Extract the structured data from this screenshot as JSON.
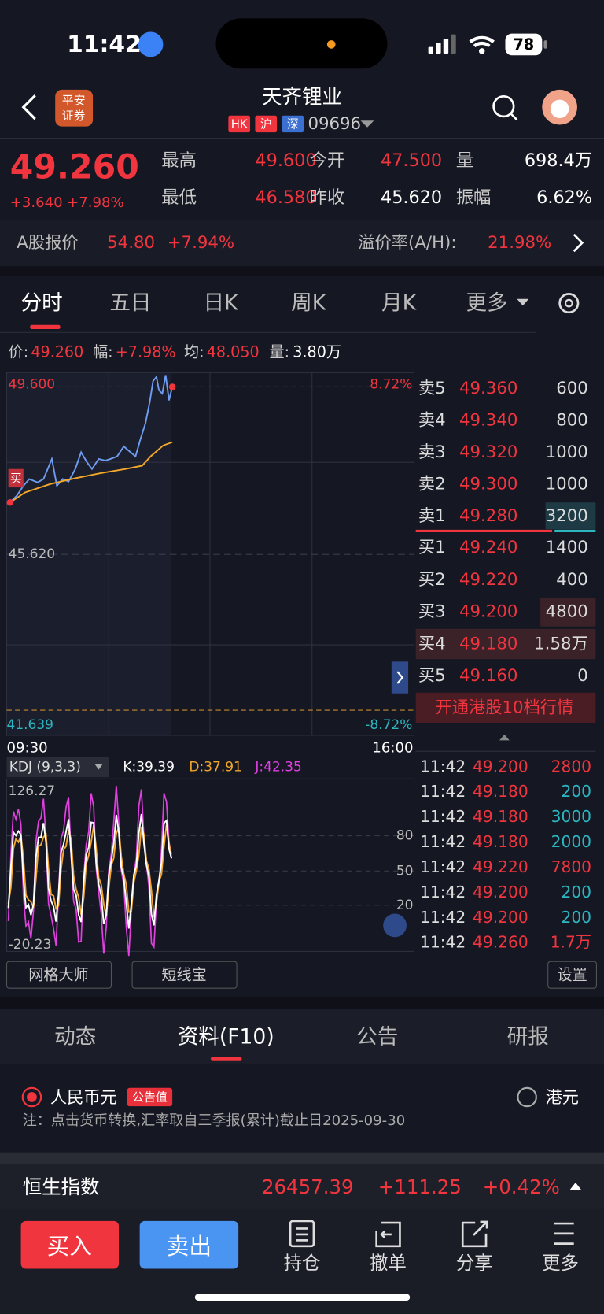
{
  "status_bar": {
    "time": "11:42",
    "battery": "78"
  },
  "header": {
    "broker_logo": [
      "平安",
      "证券"
    ],
    "title": "天齐锂业",
    "tags": [
      "HK",
      "沪",
      "深"
    ],
    "code": "09696"
  },
  "quote": {
    "price": "49.260",
    "change": "+3.640",
    "change_pct": "+7.98%",
    "stats": [
      {
        "label": "最高",
        "value": "49.600",
        "color": "#f0353f"
      },
      {
        "label": "今开",
        "value": "47.500",
        "color": "#f0353f"
      },
      {
        "label": "量",
        "value": "698.4万",
        "color": "#ffffff"
      },
      {
        "label": "最低",
        "value": "46.580",
        "color": "#f0353f"
      },
      {
        "label": "昨收",
        "value": "45.620",
        "color": "#ffffff"
      },
      {
        "label": "振幅",
        "value": "6.62%",
        "color": "#ffffff"
      }
    ]
  },
  "a_share": {
    "label": "A股报价",
    "price": "54.80",
    "change_pct": "+7.94%",
    "premium_label": "溢价率(A/H):",
    "premium": "21.98%"
  },
  "tabs": [
    "分时",
    "五日",
    "日K",
    "周K",
    "月K",
    "更多"
  ],
  "info": [
    {
      "label": "价:",
      "value": "49.260",
      "color": "#f0353f"
    },
    {
      "label": "幅:",
      "value": "+7.98%",
      "color": "#f0353f"
    },
    {
      "label": "均:",
      "value": "48.050",
      "color": "#f0353f"
    },
    {
      "label": "量:",
      "value": "3.80万",
      "color": "#ffffff"
    }
  ],
  "chart": {
    "high": "49.600",
    "high_pct": "8.72%",
    "prev_close": "45.620",
    "low": "41.639",
    "low_pct": "-8.72%",
    "start": "09:30",
    "end": "16:00",
    "buy_marker": "买"
  },
  "order_book": {
    "asks": [
      {
        "label": "卖5",
        "price": "49.360",
        "volume": "600"
      },
      {
        "label": "卖4",
        "price": "49.340",
        "volume": "800"
      },
      {
        "label": "卖3",
        "price": "49.320",
        "volume": "1000"
      },
      {
        "label": "卖2",
        "price": "49.300",
        "volume": "1000"
      },
      {
        "label": "卖1",
        "price": "49.280",
        "volume": "3200"
      }
    ],
    "bids": [
      {
        "label": "买1",
        "price": "49.240",
        "volume": "1400"
      },
      {
        "label": "买2",
        "price": "49.220",
        "volume": "400"
      },
      {
        "label": "买3",
        "price": "49.200",
        "volume": "4800"
      },
      {
        "label": "买4",
        "price": "49.180",
        "volume": "1.58万"
      },
      {
        "label": "买5",
        "price": "49.160",
        "volume": "0"
      }
    ],
    "upgrade": "开通港股10档行情"
  },
  "kdj": {
    "name": "KDJ (9,3,3)",
    "k": "K:39.39",
    "d": "D:37.91",
    "j": "J:42.35",
    "max": "126.27",
    "min": "-20.23",
    "levels": [
      "80",
      "50",
      "20"
    ]
  },
  "trades": [
    {
      "time": "11:42",
      "price": "49.200",
      "volume": "2800",
      "color": "#f0353f"
    },
    {
      "time": "11:42",
      "price": "49.180",
      "volume": "200",
      "color": "#2bb6c0"
    },
    {
      "time": "11:42",
      "price": "49.180",
      "volume": "3000",
      "color": "#2bb6c0"
    },
    {
      "time": "11:42",
      "price": "49.180",
      "volume": "2000",
      "color": "#2bb6c0"
    },
    {
      "time": "11:42",
      "price": "49.220",
      "volume": "7800",
      "color": "#f0353f"
    },
    {
      "time": "11:42",
      "price": "49.200",
      "volume": "200",
      "color": "#2bb6c0"
    },
    {
      "time": "11:42",
      "price": "49.200",
      "volume": "200",
      "color": "#2bb6c0"
    },
    {
      "time": "11:42",
      "price": "49.260",
      "volume": "1.7万",
      "color": "#f0353f"
    }
  ],
  "tools": [
    "网格大师",
    "短线宝",
    "设置"
  ],
  "sections": [
    "动态",
    "资料(F10)",
    "公告",
    "研报"
  ],
  "currency": {
    "options": [
      "人民币元",
      "港元"
    ],
    "badge": "公告值",
    "note": "注：点击货币转换,汇率取自三季报(累计)截止日2025-09-30"
  },
  "index": {
    "name": "恒生指数",
    "value": "26457.39",
    "change": "+111.25",
    "change_pct": "+0.42%"
  },
  "nav": {
    "buy": "买入",
    "sell": "卖出",
    "items": [
      "持仓",
      "撤单",
      "分享",
      "更多"
    ]
  }
}
